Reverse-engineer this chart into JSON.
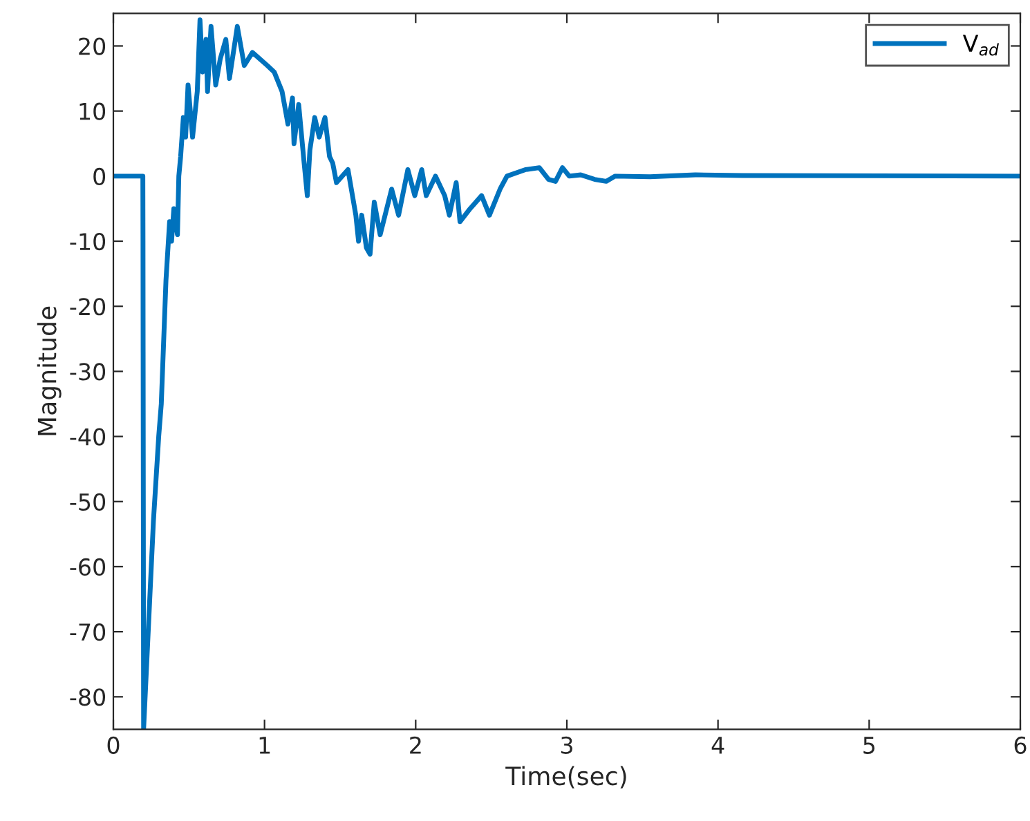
{
  "chart_data": {
    "type": "line",
    "xlabel": "Time(sec)",
    "ylabel": "Magnitude",
    "xlim": [
      0,
      6
    ],
    "ylim": [
      -85,
      25
    ],
    "xticks": [
      0,
      1,
      2,
      3,
      4,
      5,
      6
    ],
    "yticks": [
      -80,
      -70,
      -60,
      -50,
      -40,
      -30,
      -20,
      -10,
      0,
      10,
      20
    ],
    "grid": false,
    "legend": "top right",
    "line_style": "solid",
    "marker": "none",
    "series": [
      {
        "name": "V$_{ad}$",
        "color": "#0072bd",
        "x": [
          0,
          0.195,
          0.196,
          0.2,
          0.265,
          0.3,
          0.317,
          0.348,
          0.372,
          0.385,
          0.4,
          0.424,
          0.433,
          0.445,
          0.463,
          0.478,
          0.494,
          0.524,
          0.555,
          0.573,
          0.59,
          0.613,
          0.623,
          0.646,
          0.677,
          0.707,
          0.744,
          0.768,
          0.82,
          0.866,
          0.92,
          1.018,
          1.064,
          1.116,
          1.155,
          1.185,
          1.195,
          1.226,
          1.262,
          1.283,
          1.3,
          1.332,
          1.362,
          1.4,
          1.43,
          1.451,
          1.476,
          1.552,
          1.604,
          1.622,
          1.643,
          1.674,
          1.698,
          1.726,
          1.765,
          1.841,
          1.887,
          1.948,
          1.994,
          2.04,
          2.07,
          2.131,
          2.192,
          2.223,
          2.268,
          2.293,
          2.36,
          2.436,
          2.488,
          2.558,
          2.604,
          2.726,
          2.818,
          2.879,
          2.925,
          2.971,
          3.016,
          3.092,
          3.184,
          3.26,
          3.32,
          3.55,
          3.85,
          4.16,
          6
        ],
        "values": [
          0,
          0,
          -10,
          -85,
          -53,
          -40,
          -35,
          -16,
          -7,
          -10,
          -5,
          -9,
          0,
          3,
          9,
          6,
          14,
          6,
          13,
          24,
          16,
          21,
          13,
          23,
          14,
          18,
          21,
          15,
          23,
          17,
          19,
          17,
          16,
          13,
          8,
          12,
          5,
          11,
          2,
          -3,
          4,
          9,
          6,
          9,
          3,
          2,
          -1,
          1,
          -6,
          -10,
          -6,
          -11,
          -12,
          -4,
          -9,
          -2,
          -6,
          1,
          -3,
          1,
          -3,
          0,
          -3,
          -6,
          -1,
          -7,
          -5,
          -3,
          -6,
          -2,
          0,
          1,
          1.3,
          -0.5,
          -0.8,
          1.3,
          0,
          0.2,
          -0.5,
          -0.8,
          0,
          -0.1,
          0.2,
          0.1,
          0
        ]
      }
    ]
  }
}
